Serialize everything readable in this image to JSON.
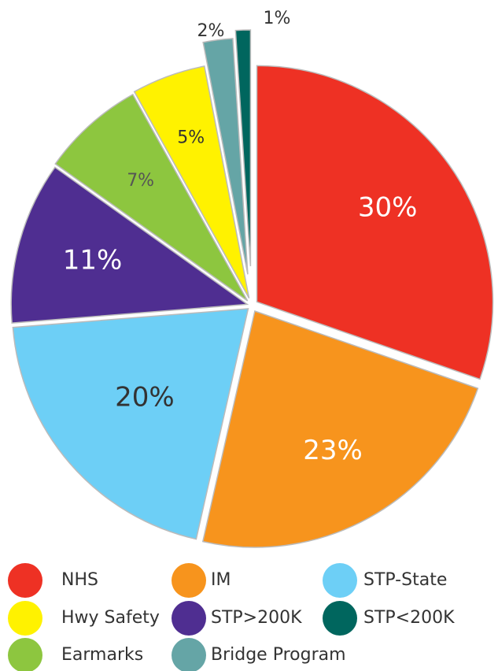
{
  "chart_data": {
    "type": "pie",
    "categories": [
      "NHS",
      "IM",
      "STP-State",
      "STP>200K",
      "Earmarks",
      "Hwy Safety",
      "Bridge Program",
      "STP<200K"
    ],
    "values": [
      30,
      23,
      20,
      11,
      7,
      5,
      2,
      1
    ],
    "value_labels": [
      "30%",
      "23%",
      "20%",
      "11%",
      "7%",
      "5%",
      "2%",
      "1%"
    ],
    "colors": [
      "#ee3124",
      "#f7941d",
      "#6dcff6",
      "#4f2e91",
      "#8dc63f",
      "#fff200",
      "#65a5a6",
      "#00665e"
    ]
  }
}
